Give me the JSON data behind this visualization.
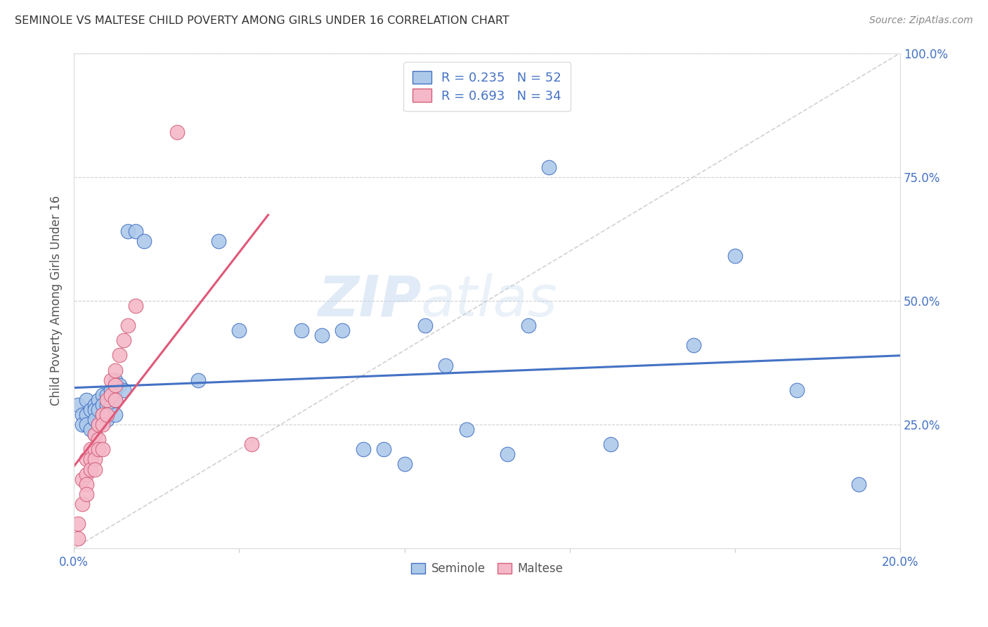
{
  "title": "SEMINOLE VS MALTESE CHILD POVERTY AMONG GIRLS UNDER 16 CORRELATION CHART",
  "source": "Source: ZipAtlas.com",
  "ylabel": "Child Poverty Among Girls Under 16",
  "seminole_R": 0.235,
  "seminole_N": 52,
  "maltese_R": 0.693,
  "maltese_N": 34,
  "xlim": [
    0.0,
    0.2
  ],
  "ylim": [
    0.0,
    1.0
  ],
  "xtick_positions": [
    0.0,
    0.04,
    0.08,
    0.12,
    0.16,
    0.2
  ],
  "xticklabels": [
    "0.0%",
    "",
    "",
    "",
    "",
    "20.0%"
  ],
  "ytick_positions": [
    0.0,
    0.25,
    0.5,
    0.75,
    1.0
  ],
  "yticklabels": [
    "",
    "25.0%",
    "50.0%",
    "75.0%",
    "100.0%"
  ],
  "seminole_color": "#adc9ea",
  "maltese_color": "#f5b8c8",
  "seminole_line_color": "#4472c4",
  "maltese_line_color": "#e05878",
  "diagonal_color": "#cccccc",
  "watermark_zip": "ZIP",
  "watermark_atlas": "atlas",
  "background_color": "#ffffff",
  "seminole_x": [
    0.001,
    0.002,
    0.002,
    0.003,
    0.003,
    0.003,
    0.004,
    0.004,
    0.005,
    0.005,
    0.005,
    0.005,
    0.006,
    0.006,
    0.006,
    0.007,
    0.007,
    0.007,
    0.008,
    0.008,
    0.008,
    0.009,
    0.009,
    0.01,
    0.01,
    0.01,
    0.01,
    0.011,
    0.012,
    0.013,
    0.015,
    0.017,
    0.03,
    0.035,
    0.04,
    0.055,
    0.06,
    0.065,
    0.07,
    0.075,
    0.08,
    0.085,
    0.09,
    0.095,
    0.105,
    0.11,
    0.115,
    0.13,
    0.15,
    0.16,
    0.175,
    0.19
  ],
  "seminole_y": [
    0.29,
    0.27,
    0.25,
    0.3,
    0.27,
    0.25,
    0.28,
    0.24,
    0.29,
    0.28,
    0.26,
    0.23,
    0.3,
    0.28,
    0.25,
    0.31,
    0.29,
    0.27,
    0.31,
    0.29,
    0.26,
    0.32,
    0.29,
    0.34,
    0.32,
    0.3,
    0.27,
    0.33,
    0.32,
    0.64,
    0.64,
    0.62,
    0.34,
    0.62,
    0.44,
    0.44,
    0.43,
    0.44,
    0.2,
    0.2,
    0.17,
    0.45,
    0.37,
    0.24,
    0.19,
    0.45,
    0.77,
    0.21,
    0.41,
    0.59,
    0.32,
    0.13
  ],
  "maltese_x": [
    0.001,
    0.001,
    0.002,
    0.002,
    0.003,
    0.003,
    0.003,
    0.003,
    0.004,
    0.004,
    0.004,
    0.005,
    0.005,
    0.005,
    0.005,
    0.006,
    0.006,
    0.006,
    0.007,
    0.007,
    0.007,
    0.008,
    0.008,
    0.009,
    0.009,
    0.01,
    0.01,
    0.01,
    0.011,
    0.012,
    0.013,
    0.015,
    0.025,
    0.043
  ],
  "maltese_y": [
    0.05,
    0.02,
    0.14,
    0.09,
    0.18,
    0.15,
    0.13,
    0.11,
    0.2,
    0.18,
    0.16,
    0.23,
    0.2,
    0.18,
    0.16,
    0.25,
    0.22,
    0.2,
    0.27,
    0.25,
    0.2,
    0.3,
    0.27,
    0.34,
    0.31,
    0.36,
    0.33,
    0.3,
    0.39,
    0.42,
    0.45,
    0.49,
    0.84,
    0.21
  ]
}
